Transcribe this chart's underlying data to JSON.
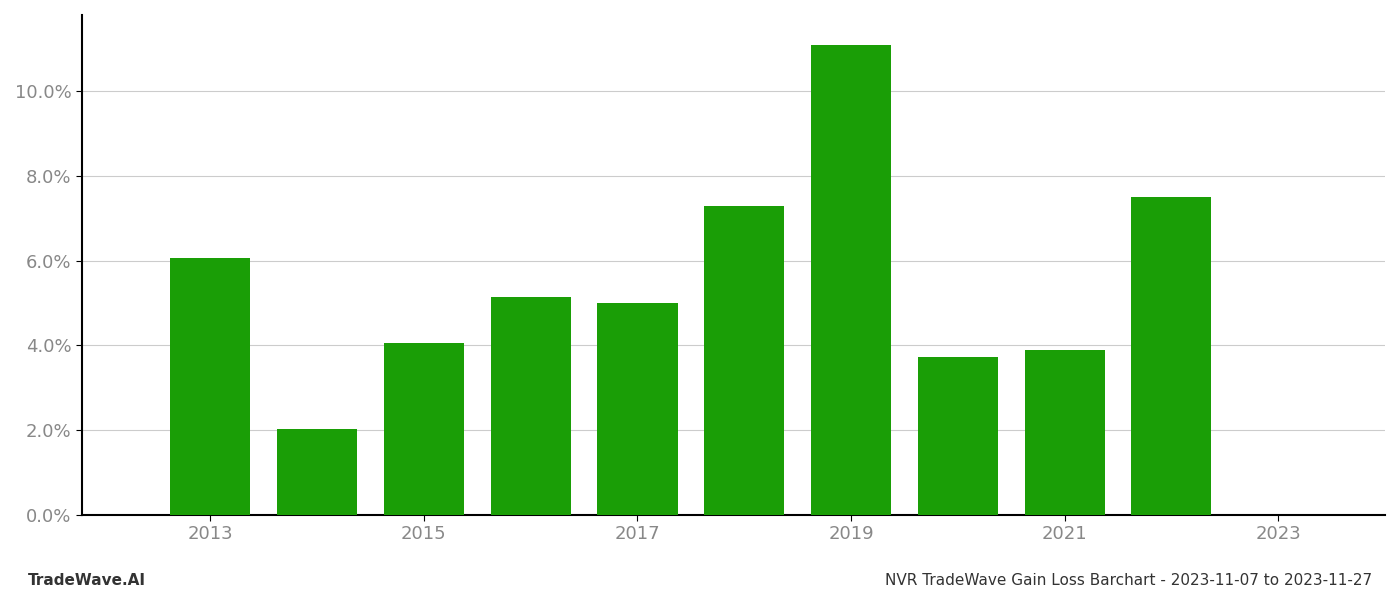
{
  "years": [
    2013,
    2014,
    2015,
    2016,
    2017,
    2018,
    2019,
    2020,
    2021,
    2022,
    2023
  ],
  "values": [
    0.0605,
    0.0202,
    0.0405,
    0.0515,
    0.05,
    0.0728,
    0.111,
    0.0372,
    0.0388,
    0.075,
    null
  ],
  "bar_color": "#1a9e06",
  "background_color": "#ffffff",
  "grid_color": "#cccccc",
  "axis_color": "#888888",
  "spine_color": "#000000",
  "tick_label_color": "#888888",
  "title_text": "NVR TradeWave Gain Loss Barchart - 2023-11-07 to 2023-11-27",
  "watermark_text": "TradeWave.AI",
  "title_fontsize": 11,
  "watermark_fontsize": 11,
  "ylim": [
    0,
    0.118
  ],
  "yticks": [
    0.0,
    0.02,
    0.04,
    0.06,
    0.08,
    0.1
  ],
  "bar_width": 0.75,
  "xlim_left": 2011.8,
  "xlim_right": 2024.0
}
